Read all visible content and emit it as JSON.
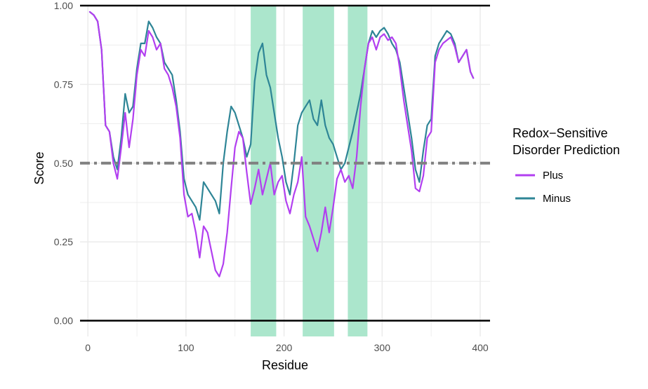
{
  "chart_data": {
    "type": "line",
    "xlabel": "Residue",
    "ylabel": "Score",
    "xlim": [
      -8,
      410
    ],
    "ylim": [
      -0.05,
      1.0
    ],
    "x_ticks": [
      0,
      100,
      200,
      300,
      400
    ],
    "x_tick_labels": [
      "0",
      "100",
      "200",
      "300",
      "400"
    ],
    "y_ticks": [
      0.0,
      0.25,
      0.5,
      0.75,
      1.0
    ],
    "y_tick_labels": [
      "0.00",
      "0.25",
      "0.50",
      "0.75",
      "1.00"
    ],
    "threshold": 0.5,
    "grid": true,
    "legend": {
      "title_lines": [
        "Redox−Sensitive",
        "Disorder Prediction"
      ],
      "position": "right"
    },
    "shaded_regions": [
      [
        166,
        192
      ],
      [
        219,
        251
      ],
      [
        265,
        285
      ]
    ],
    "colors": {
      "plus": "#b23ff0",
      "minus": "#2e8596",
      "region": "#abe6cc",
      "threshold": "#808080",
      "grid": "#ebebeb"
    },
    "series": [
      {
        "name": "Plus",
        "color": "#b23ff0",
        "x": [
          2,
          6,
          10,
          14,
          18,
          22,
          26,
          30,
          34,
          38,
          42,
          46,
          50,
          54,
          58,
          62,
          66,
          70,
          74,
          78,
          82,
          86,
          90,
          94,
          98,
          102,
          106,
          110,
          114,
          118,
          122,
          126,
          130,
          134,
          138,
          142,
          146,
          150,
          154,
          158,
          162,
          166,
          170,
          174,
          178,
          182,
          186,
          190,
          194,
          198,
          202,
          206,
          210,
          214,
          218,
          222,
          226,
          230,
          234,
          238,
          242,
          246,
          250,
          254,
          258,
          262,
          266,
          270,
          274,
          278,
          282,
          286,
          290,
          294,
          298,
          302,
          306,
          310,
          314,
          318,
          322,
          326,
          330,
          334,
          338,
          342,
          346,
          350,
          354,
          358,
          362,
          366,
          370,
          374,
          378,
          382,
          386,
          390,
          393
        ],
        "values": [
          0.98,
          0.97,
          0.95,
          0.86,
          0.62,
          0.6,
          0.5,
          0.45,
          0.55,
          0.66,
          0.55,
          0.64,
          0.78,
          0.86,
          0.84,
          0.92,
          0.9,
          0.86,
          0.88,
          0.8,
          0.78,
          0.74,
          0.68,
          0.58,
          0.4,
          0.33,
          0.34,
          0.28,
          0.2,
          0.3,
          0.28,
          0.22,
          0.16,
          0.14,
          0.18,
          0.28,
          0.42,
          0.55,
          0.6,
          0.58,
          0.47,
          0.37,
          0.42,
          0.48,
          0.4,
          0.45,
          0.5,
          0.4,
          0.44,
          0.46,
          0.38,
          0.34,
          0.4,
          0.44,
          0.52,
          0.33,
          0.3,
          0.26,
          0.22,
          0.28,
          0.36,
          0.28,
          0.36,
          0.45,
          0.48,
          0.44,
          0.46,
          0.42,
          0.52,
          0.68,
          0.8,
          0.88,
          0.9,
          0.86,
          0.9,
          0.91,
          0.89,
          0.9,
          0.88,
          0.8,
          0.7,
          0.62,
          0.54,
          0.42,
          0.41,
          0.46,
          0.58,
          0.6,
          0.82,
          0.86,
          0.88,
          0.89,
          0.9,
          0.87,
          0.82,
          0.84,
          0.86,
          0.79,
          0.77
        ]
      },
      {
        "name": "Minus",
        "color": "#2e8596",
        "x": [
          2,
          6,
          10,
          14,
          18,
          22,
          26,
          30,
          34,
          38,
          42,
          46,
          50,
          54,
          58,
          62,
          66,
          70,
          74,
          78,
          82,
          86,
          90,
          94,
          98,
          102,
          106,
          110,
          114,
          118,
          122,
          126,
          130,
          134,
          138,
          142,
          146,
          150,
          154,
          158,
          162,
          166,
          170,
          174,
          178,
          182,
          186,
          190,
          194,
          198,
          202,
          206,
          210,
          214,
          218,
          222,
          226,
          230,
          234,
          238,
          242,
          246,
          250,
          254,
          258,
          262,
          266,
          270,
          274,
          278,
          282,
          286,
          290,
          294,
          298,
          302,
          306,
          310,
          314,
          318,
          322,
          326,
          330,
          334,
          338,
          342,
          346,
          350,
          354,
          358,
          362,
          366,
          370,
          374,
          378,
          382,
          386,
          390,
          393
        ],
        "values": [
          0.98,
          0.97,
          0.95,
          0.86,
          0.62,
          0.6,
          0.52,
          0.48,
          0.58,
          0.72,
          0.66,
          0.68,
          0.8,
          0.88,
          0.88,
          0.95,
          0.93,
          0.9,
          0.88,
          0.82,
          0.8,
          0.78,
          0.7,
          0.6,
          0.45,
          0.4,
          0.38,
          0.36,
          0.32,
          0.44,
          0.42,
          0.4,
          0.38,
          0.34,
          0.5,
          0.6,
          0.68,
          0.66,
          0.62,
          0.58,
          0.52,
          0.56,
          0.76,
          0.85,
          0.88,
          0.78,
          0.74,
          0.66,
          0.58,
          0.52,
          0.44,
          0.4,
          0.5,
          0.62,
          0.66,
          0.68,
          0.7,
          0.64,
          0.62,
          0.7,
          0.62,
          0.58,
          0.56,
          0.52,
          0.48,
          0.5,
          0.55,
          0.6,
          0.66,
          0.72,
          0.8,
          0.88,
          0.92,
          0.9,
          0.92,
          0.93,
          0.91,
          0.88,
          0.86,
          0.82,
          0.74,
          0.66,
          0.58,
          0.48,
          0.44,
          0.54,
          0.62,
          0.64,
          0.84,
          0.88,
          0.9,
          0.92,
          0.91,
          0.88,
          0.82,
          0.84,
          0.86,
          0.79,
          0.77
        ]
      }
    ]
  }
}
